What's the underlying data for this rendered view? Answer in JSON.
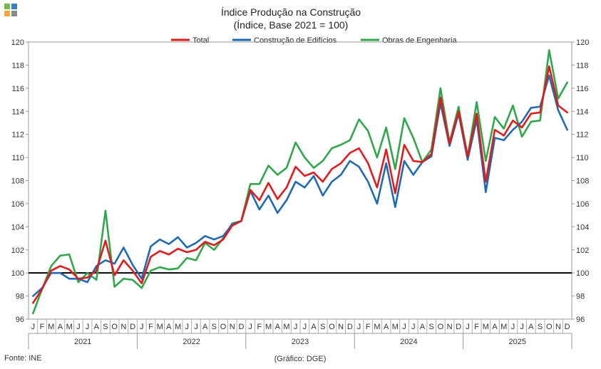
{
  "logo": {
    "colors": [
      "#7ab648",
      "#3b7dc4",
      "#f3a83b",
      "#8a8a8a"
    ]
  },
  "chart_data": {
    "type": "line",
    "title": "Índice Produção na Construção",
    "subtitle": "(Índice, Base 2021 = 100)",
    "ylim": [
      96,
      120
    ],
    "yticks": [
      96,
      98,
      100,
      102,
      104,
      106,
      108,
      110,
      112,
      114,
      116,
      118,
      120
    ],
    "reference_line": 100,
    "month_labels": [
      "J",
      "F",
      "M",
      "A",
      "M",
      "J",
      "J",
      "A",
      "S",
      "O",
      "N",
      "D"
    ],
    "years": [
      "2021",
      "2022",
      "2023",
      "2024",
      "2025"
    ],
    "series": [
      {
        "name": "Total",
        "color": "#e31a1c",
        "values": [
          97.4,
          98.6,
          100.2,
          100.6,
          100.3,
          99.5,
          99.6,
          100.2,
          102.8,
          99.8,
          101.1,
          100.2,
          99.1,
          101.4,
          101.9,
          101.6,
          102.1,
          101.8,
          102.0,
          102.7,
          102.4,
          102.9,
          104.1,
          104.5,
          107.2,
          106.3,
          107.8,
          106.4,
          107.4,
          109.2,
          108.4,
          108.7,
          107.9,
          109.0,
          109.5,
          110.4,
          110.8,
          109.5,
          107.4,
          110.7,
          106.9,
          111.1,
          109.7,
          109.6,
          110.3,
          115.2,
          111.2,
          114.0,
          110.1,
          113.8,
          107.9,
          112.4,
          111.9,
          113.2,
          112.6,
          113.8,
          113.9,
          117.9,
          114.5,
          113.9
        ]
      },
      {
        "name": "Construção de Edifícios",
        "color": "#1f6ab5",
        "values": [
          98.0,
          98.7,
          100.0,
          100.0,
          99.5,
          99.5,
          99.2,
          100.6,
          101.1,
          100.8,
          102.2,
          100.7,
          99.5,
          102.3,
          102.9,
          102.5,
          103.1,
          102.2,
          102.6,
          103.2,
          102.9,
          103.2,
          104.2,
          104.5,
          107.1,
          105.5,
          106.7,
          105.2,
          106.3,
          107.9,
          107.4,
          108.4,
          106.7,
          107.9,
          108.5,
          109.7,
          109.2,
          107.9,
          106.0,
          109.5,
          105.7,
          109.7,
          108.5,
          109.6,
          110.1,
          114.7,
          111.0,
          113.8,
          109.8,
          113.3,
          107.0,
          111.7,
          111.5,
          112.4,
          113.1,
          114.3,
          114.4,
          117.1,
          114.1,
          112.4
        ]
      },
      {
        "name": "Obras de Engenharia",
        "color": "#2ea84a",
        "values": [
          96.5,
          98.6,
          100.6,
          101.5,
          101.6,
          99.2,
          100.0,
          99.4,
          105.4,
          98.8,
          99.5,
          99.4,
          98.7,
          100.2,
          100.5,
          100.3,
          100.4,
          101.3,
          101.1,
          102.6,
          102.0,
          103.0,
          104.3,
          104.5,
          107.7,
          107.7,
          109.3,
          108.5,
          109.1,
          111.3,
          110.0,
          109.1,
          109.7,
          110.8,
          111.1,
          111.5,
          113.3,
          112.3,
          110.0,
          112.6,
          109.0,
          113.4,
          111.7,
          109.6,
          110.7,
          116.0,
          111.3,
          114.4,
          110.1,
          114.8,
          109.7,
          113.5,
          112.5,
          114.5,
          111.8,
          113.1,
          113.2,
          119.3,
          115.1,
          116.5
        ]
      }
    ],
    "source": "Fonte: INE",
    "credit": "(Gráfico: DGE)"
  }
}
